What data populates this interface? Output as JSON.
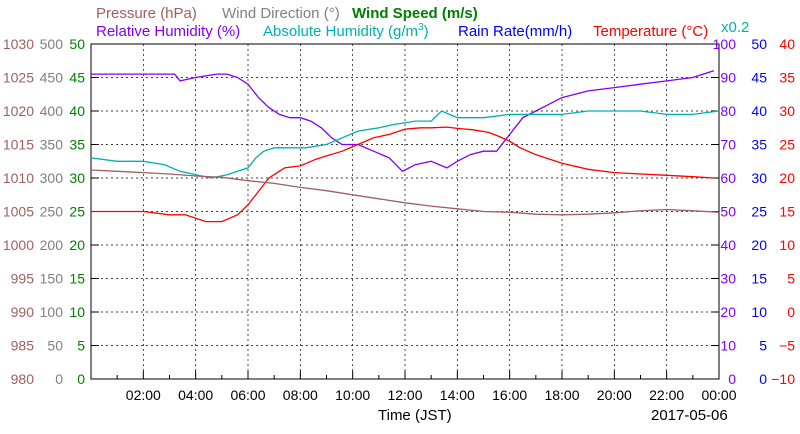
{
  "legend": {
    "pressure": "Pressure (hPa)",
    "wind_direction": "Wind Direction (°)",
    "wind_speed": "Wind Speed (m/s)",
    "relative_humidity": "Relative Humidity (%)",
    "absolute_humidity": "Absolute Humidity (g/m",
    "absolute_humidity_sup": "3",
    "absolute_humidity_close": ")",
    "rain_rate": "Rain Rate(mm/h)",
    "temperature": "Temperature (°C)",
    "scale_note": "x0.2"
  },
  "colors": {
    "pressure": "#a06060",
    "wind_direction": "#808080",
    "wind_speed": "#008000",
    "relative_humidity": "#8000ff",
    "absolute_humidity": "#00b0b0",
    "rain_rate": "#0000ff",
    "temperature": "#ff0000"
  },
  "chart_data": {
    "type": "line",
    "xlabel": "Time (JST)",
    "date_label": "2017-05-06",
    "x_range": [
      "00:00",
      "24:00"
    ],
    "x_ticks": [
      "02:00",
      "04:00",
      "06:00",
      "08:00",
      "10:00",
      "12:00",
      "14:00",
      "16:00",
      "18:00",
      "20:00",
      "22:00",
      "00:00"
    ],
    "axes": {
      "pressure": {
        "min": 980,
        "max": 1030,
        "ticks": [
          "980",
          "985",
          "990",
          "995",
          "1000",
          "1005",
          "1010",
          "1015",
          "1020",
          "1025",
          "1030"
        ]
      },
      "wind_direction": {
        "min": 0,
        "max": 500,
        "ticks": [
          "0",
          "50",
          "100",
          "150",
          "200",
          "250",
          "300",
          "350",
          "400",
          "450",
          "500"
        ]
      },
      "wind_speed": {
        "min": 0,
        "max": 50,
        "ticks": [
          "0",
          "5",
          "10",
          "15",
          "20",
          "25",
          "30",
          "35",
          "40",
          "45",
          "50"
        ]
      },
      "relative_humidity": {
        "min": 0,
        "max": 100,
        "ticks": [
          "0",
          "10",
          "20",
          "30",
          "40",
          "50",
          "60",
          "70",
          "80",
          "90",
          "100"
        ]
      },
      "rain_rate": {
        "min": 0,
        "max": 50,
        "ticks": [
          "0",
          "5",
          "10",
          "15",
          "20",
          "25",
          "30",
          "35",
          "40",
          "45",
          "50"
        ]
      },
      "temperature": {
        "min": -10,
        "max": 40,
        "ticks": [
          "−10",
          "−5",
          "0",
          "5",
          "10",
          "15",
          "20",
          "25",
          "30",
          "35",
          "40"
        ]
      }
    },
    "series": [
      {
        "name": "Relative Humidity (%)",
        "axis": "relative_humidity",
        "x": [
          0,
          3.2,
          3.4,
          4,
          4.8,
          5.2,
          5.6,
          6,
          6.4,
          6.8,
          7.2,
          7.6,
          8,
          8.4,
          8.8,
          9.2,
          9.6,
          10.2,
          10.8,
          11.4,
          11.9,
          12.4,
          13,
          13.6,
          14,
          14.5,
          15,
          15.5,
          16,
          16.5,
          17,
          17.5,
          18,
          19,
          20,
          21,
          22,
          23,
          23.8
        ],
        "y": [
          91,
          91,
          89,
          90,
          91,
          91,
          90,
          88,
          84,
          81,
          79,
          78,
          78,
          77,
          75,
          72,
          70,
          70,
          68,
          66,
          62,
          64,
          65,
          63,
          65,
          67,
          68,
          68,
          73,
          78,
          80,
          82,
          84,
          86,
          87,
          88,
          89,
          90,
          92
        ]
      },
      {
        "name": "Absolute Humidity (g/m3)",
        "axis": "relative_humidity",
        "x": [
          0,
          1,
          2,
          2.8,
          3.4,
          4,
          4.6,
          5.2,
          5.6,
          6,
          6.3,
          6.6,
          7,
          7.6,
          8.2,
          9,
          9.6,
          10.2,
          11,
          11.6,
          12.4,
          13,
          13.4,
          14,
          15,
          16,
          17,
          18,
          19,
          20,
          21,
          22,
          23,
          24
        ],
        "y": [
          66,
          65,
          65,
          64,
          62,
          61,
          60,
          61,
          62,
          63,
          66,
          68,
          69,
          69,
          69,
          70,
          72,
          74,
          75,
          76,
          77,
          77,
          80,
          78,
          78,
          79,
          79,
          79,
          80,
          80,
          80,
          79,
          79,
          80
        ]
      },
      {
        "name": "Temperature (°C)",
        "axis": "temperature",
        "x": [
          0,
          1,
          2,
          3,
          3.6,
          4.4,
          5,
          5.6,
          6,
          6.4,
          6.8,
          7.4,
          8,
          8.6,
          9,
          9.6,
          10.2,
          10.8,
          11.4,
          12,
          12.6,
          13,
          13.6,
          14,
          14.6,
          15.2,
          15.6,
          16,
          16.4,
          17,
          18,
          19,
          20,
          21,
          22,
          23,
          23.8
        ],
        "y": [
          15,
          15,
          15,
          14.5,
          14.5,
          13.5,
          13.5,
          14.5,
          16,
          18,
          20,
          21.5,
          21.8,
          22.8,
          23.3,
          24,
          25,
          26,
          26.5,
          27.3,
          27.5,
          27.5,
          27.6,
          27.4,
          27.2,
          26.8,
          26.2,
          25.5,
          24.5,
          23.5,
          22.2,
          21.3,
          20.8,
          20.6,
          20.4,
          20.2,
          20
        ]
      },
      {
        "name": "Pressure (hPa)",
        "axis": "pressure",
        "x": [
          0,
          1,
          2,
          3,
          4,
          5,
          6,
          7,
          8,
          9,
          10,
          11,
          12,
          13,
          14,
          15,
          16,
          17,
          18,
          19,
          20,
          21,
          22,
          23,
          24
        ],
        "y": [
          1011.2,
          1011,
          1010.8,
          1010.6,
          1010.3,
          1010.1,
          1009.6,
          1009.2,
          1008.6,
          1008.1,
          1007.5,
          1006.9,
          1006.3,
          1005.8,
          1005.4,
          1005,
          1004.9,
          1004.6,
          1004.5,
          1004.6,
          1004.8,
          1005.1,
          1005.3,
          1005.1,
          1004.9
        ]
      }
    ]
  }
}
